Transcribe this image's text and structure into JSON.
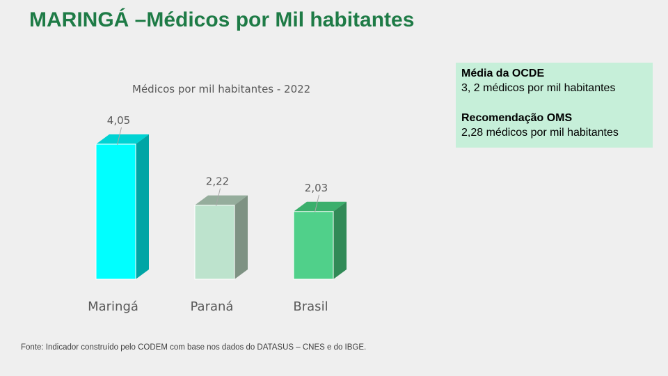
{
  "page": {
    "title": "MARINGÁ –Médicos por Mil habitantes",
    "source": "Fonte:  Indicador construído pelo CODEM com base nos dados do DATASUS – CNES e do IBGE."
  },
  "info_box": {
    "ocde_heading": "Média da OCDE",
    "ocde_text": "3, 2 médicos por mil habitantes",
    "oms_heading": "Recomendação OMS",
    "oms_text": "2,28 médicos por mil habitantes"
  },
  "chart_data": {
    "type": "bar",
    "title": "Médicos por mil habitantes - 2022",
    "categories": [
      "Maringá",
      "Paraná",
      "Brasil"
    ],
    "values": [
      4.05,
      2.22,
      2.03
    ],
    "data_labels": [
      "4,05",
      "2,22",
      "2,03"
    ],
    "colors": [
      {
        "front": "#00ffff",
        "side": "#00a5a5",
        "top": "#00d3d3",
        "border": "#ffffff"
      },
      {
        "front": "#bde3cd",
        "side": "#7e9283",
        "top": "#95ad9c",
        "border": "#ffffff"
      },
      {
        "front": "#50d08a",
        "side": "#318a57",
        "top": "#3baf6c",
        "border": "#ffffff"
      }
    ],
    "label_color": "#595959",
    "three_d": true,
    "grid": false,
    "legend": "none"
  }
}
